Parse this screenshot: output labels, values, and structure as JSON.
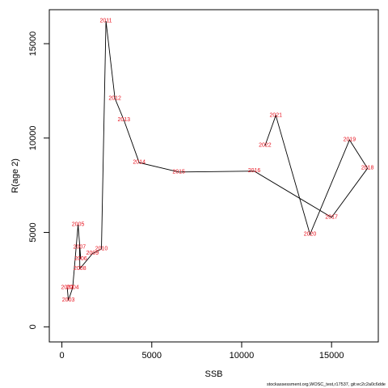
{
  "chart_data": {
    "type": "line",
    "xlabel": "SSB",
    "ylabel": "R(age 2)",
    "xlim": [
      -700,
      17600
    ],
    "ylim": [
      -800,
      16800
    ],
    "x_ticks": [
      0,
      5000,
      10000,
      15000
    ],
    "y_ticks": [
      0,
      5000,
      10000,
      15000
    ],
    "grid": false,
    "line_color": "#000000",
    "label_color": "#e8111d",
    "points": [
      {
        "label": "2002",
        "x": 300,
        "y": 2070
      },
      {
        "label": "2003",
        "x": 360,
        "y": 1400
      },
      {
        "label": "2004",
        "x": 600,
        "y": 2070
      },
      {
        "label": "2005",
        "x": 900,
        "y": 5400
      },
      {
        "label": "2006",
        "x": 1050,
        "y": 3600
      },
      {
        "label": "2007",
        "x": 980,
        "y": 4200
      },
      {
        "label": "2008",
        "x": 1000,
        "y": 3080
      },
      {
        "label": "2009",
        "x": 1700,
        "y": 3880
      },
      {
        "label": "2010",
        "x": 2200,
        "y": 4120
      },
      {
        "label": "2011",
        "x": 2450,
        "y": 16200
      },
      {
        "label": "2012",
        "x": 2950,
        "y": 12100
      },
      {
        "label": "2013",
        "x": 3450,
        "y": 10950
      },
      {
        "label": "2014",
        "x": 4300,
        "y": 8700
      },
      {
        "label": "2015",
        "x": 6500,
        "y": 8200
      },
      {
        "label": "2016",
        "x": 10700,
        "y": 8250
      },
      {
        "label": "2017",
        "x": 15000,
        "y": 5800
      },
      {
        "label": "2018",
        "x": 17000,
        "y": 8400
      },
      {
        "label": "2019",
        "x": 16000,
        "y": 9900
      },
      {
        "label": "2020",
        "x": 13800,
        "y": 4900
      },
      {
        "label": "2021",
        "x": 11900,
        "y": 11200
      },
      {
        "label": "2022",
        "x": 11300,
        "y": 9600
      }
    ]
  },
  "footer_text": "stockassessment.org,WOSC_test,r17537, git:ec2c2a0c6dde"
}
